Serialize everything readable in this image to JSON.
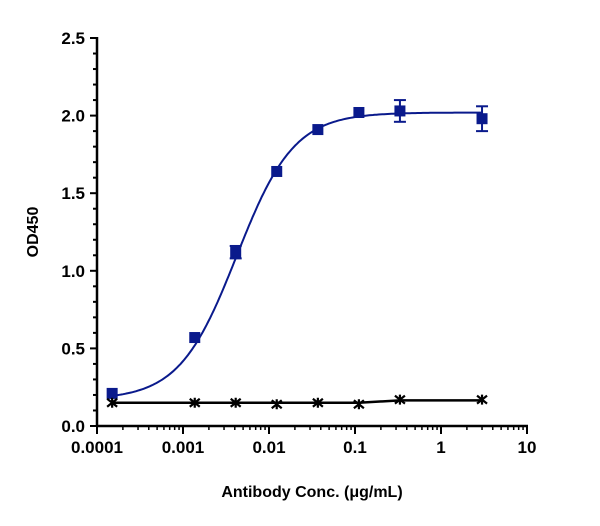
{
  "chart_data": {
    "type": "scatter",
    "title": "",
    "xlabel": "Antibody Conc. (μg/mL)",
    "ylabel": "OD450",
    "xscale": "log",
    "xlim": [
      0.0001,
      10
    ],
    "ylim": [
      0,
      2.5
    ],
    "xticks": [
      "0.0001",
      "0.001",
      "0.01",
      "0.1",
      "1",
      "10"
    ],
    "yticks": [
      "0.0",
      "0.5",
      "1.0",
      "1.5",
      "2.0",
      "2.5"
    ],
    "grid": false,
    "legend": "none",
    "series": [
      {
        "marker": "square",
        "color": "#0a1a8c",
        "fit": "4PL curve",
        "x": [
          0.00015,
          0.00137,
          0.0041,
          0.0123,
          0.037,
          0.111,
          0.333,
          3
        ],
        "y": [
          0.21,
          0.57,
          1.12,
          1.64,
          1.91,
          2.02,
          2.03,
          1.98
        ],
        "error": [
          0.02,
          0.02,
          0.04,
          0.02,
          0.02,
          0.02,
          0.07,
          0.08
        ]
      },
      {
        "marker": "x",
        "color": "#000000",
        "fit": "line",
        "x": [
          0.00015,
          0.00137,
          0.0041,
          0.0123,
          0.037,
          0.111,
          0.333,
          3
        ],
        "y": [
          0.15,
          0.15,
          0.15,
          0.14,
          0.15,
          0.14,
          0.17,
          0.17
        ]
      }
    ]
  }
}
